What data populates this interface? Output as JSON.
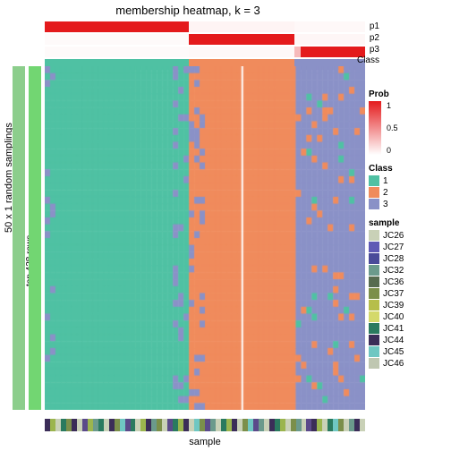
{
  "title": "membership heatmap, k = 3",
  "side_labels": {
    "outer": "50 x 1 random samplings",
    "inner": "top 428 rows"
  },
  "side_colors": {
    "outer": "#8cce8c",
    "inner": "#72d672"
  },
  "bottom_label": "sample",
  "colors": {
    "class1": "#4fc1a3",
    "class2": "#f08b5c",
    "class3": "#8a91c7",
    "background": "#ffffff",
    "noise_low": "#7e86c0",
    "noise_accent": "#4fc1a3"
  },
  "heatmap": {
    "n_cols": 60,
    "n_rows": 50,
    "class_splits": [
      0.45,
      0.78,
      1.0
    ],
    "gap_col": 0.62,
    "noise_density_right": 0.08,
    "noise_density_boundary": 0.2,
    "boundary_width": 0.05
  },
  "top_bars": [
    {
      "name": "p1",
      "type": "prob",
      "segs": [
        [
          0,
          0.45,
          1.0
        ],
        [
          0.45,
          0.78,
          0.05
        ],
        [
          0.78,
          1.0,
          0.03
        ]
      ]
    },
    {
      "name": "p2",
      "type": "prob",
      "segs": [
        [
          0,
          0.45,
          0.02
        ],
        [
          0.45,
          0.78,
          1.0
        ],
        [
          0.78,
          1.0,
          0.04
        ]
      ]
    },
    {
      "name": "p3",
      "type": "prob",
      "segs": [
        [
          0,
          0.45,
          0.02
        ],
        [
          0.45,
          0.78,
          0.03
        ],
        [
          0.78,
          0.8,
          0.3
        ],
        [
          0.8,
          1.0,
          1.0
        ]
      ]
    },
    {
      "name": "Class",
      "type": "class",
      "segs": [
        [
          0,
          0.45,
          "class1"
        ],
        [
          0.45,
          0.78,
          "class2"
        ],
        [
          0.78,
          1.0,
          "class3"
        ]
      ]
    }
  ],
  "bottom_bar": {
    "colors": [
      "#3b2d58",
      "#9bb54e",
      "#c9d1b7",
      "#2a7a5f",
      "#7b8f4a",
      "#3b2d58",
      "#c9d1b7",
      "#5b4a8a",
      "#9bb54e",
      "#6b9a8c",
      "#2a7a5f",
      "#c9d1b7",
      "#3b2d58",
      "#7b8f4a",
      "#6fc7c2",
      "#5b4a8a",
      "#2a7a5f",
      "#c9d1b7",
      "#9bb54e",
      "#3b2d58",
      "#6b9a8c",
      "#7b8f4a",
      "#c9d1b7",
      "#5b4a8a",
      "#2a7a5f",
      "#9bb54e",
      "#3b2d58",
      "#c9d1b7",
      "#6fc7c2",
      "#7b8f4a",
      "#5b4a8a",
      "#6b9a8c",
      "#c9d1b7",
      "#2a7a5f",
      "#9bb54e",
      "#3b2d58",
      "#c9d1b7",
      "#7b8f4a",
      "#6fc7c2",
      "#5b4a8a",
      "#6b9a8c",
      "#c9d1b7",
      "#3b2d58",
      "#2a7a5f",
      "#9bb54e",
      "#c9d1b7",
      "#7b8f4a",
      "#6b9a8c",
      "#c9d1b7",
      "#5b4a8a",
      "#3b2d58",
      "#9bb54e",
      "#c9d1b7",
      "#2a7a5f",
      "#6fc7c2",
      "#7b8f4a",
      "#c9d1b7",
      "#6b9a8c",
      "#3b2d58",
      "#c9d1b7"
    ]
  },
  "legends": {
    "prob": {
      "title": "Prob",
      "ticks": [
        "1",
        "0.5",
        "0"
      ],
      "gradient_top": "#e41a1c",
      "gradient_bottom": "#ffffff"
    },
    "class": {
      "title": "Class",
      "items": [
        {
          "label": "1",
          "color": "#4fc1a3"
        },
        {
          "label": "2",
          "color": "#f08b5c"
        },
        {
          "label": "3",
          "color": "#8a91c7"
        }
      ]
    },
    "sample": {
      "title": "sample",
      "items": [
        {
          "label": "JC26",
          "color": "#c9d1b7"
        },
        {
          "label": "JC27",
          "color": "#5f59b5"
        },
        {
          "label": "JC28",
          "color": "#4a4a99"
        },
        {
          "label": "JC32",
          "color": "#6b9a8c"
        },
        {
          "label": "JC36",
          "color": "#566b4f"
        },
        {
          "label": "JC37",
          "color": "#7b8f4a"
        },
        {
          "label": "JC39",
          "color": "#b6be4a"
        },
        {
          "label": "JC40",
          "color": "#d4d96a"
        },
        {
          "label": "JC41",
          "color": "#2a7a5f"
        },
        {
          "label": "JC44",
          "color": "#3b2d58"
        },
        {
          "label": "JC45",
          "color": "#6fc7c2"
        },
        {
          "label": "JC46",
          "color": "#bfc7b1"
        }
      ]
    }
  }
}
